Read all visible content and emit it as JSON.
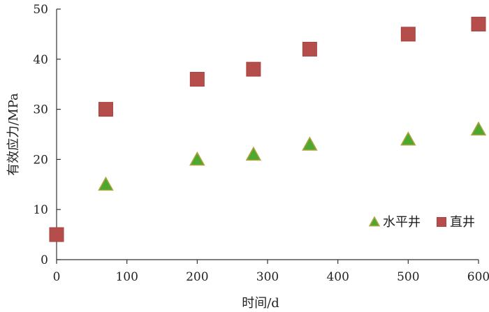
{
  "chart_data": {
    "type": "scatter",
    "title": "",
    "xlabel": "时间/d",
    "ylabel": "有效应力/MPa",
    "xlim": [
      0,
      600
    ],
    "ylim": [
      0,
      50
    ],
    "xticks": [
      0,
      100,
      200,
      300,
      400,
      500,
      600
    ],
    "yticks": [
      0,
      10,
      20,
      30,
      40,
      50
    ],
    "grid": false,
    "legend_position": "bottom-right",
    "series": [
      {
        "name": "水平井",
        "marker": "triangle",
        "color": "#4CA82E",
        "edge_color": "#B0A23C",
        "points": [
          {
            "x": 70,
            "y": 15
          },
          {
            "x": 200,
            "y": 20
          },
          {
            "x": 280,
            "y": 21
          },
          {
            "x": 360,
            "y": 23
          },
          {
            "x": 500,
            "y": 24
          },
          {
            "x": 600,
            "y": 26
          }
        ]
      },
      {
        "name": "直井",
        "marker": "square",
        "color": "#B54D4A",
        "edge_color": "#A8433F",
        "points": [
          {
            "x": 0,
            "y": 5
          },
          {
            "x": 70,
            "y": 30
          },
          {
            "x": 200,
            "y": 36
          },
          {
            "x": 280,
            "y": 38
          },
          {
            "x": 360,
            "y": 42
          },
          {
            "x": 500,
            "y": 45
          },
          {
            "x": 600,
            "y": 47
          }
        ]
      }
    ]
  }
}
